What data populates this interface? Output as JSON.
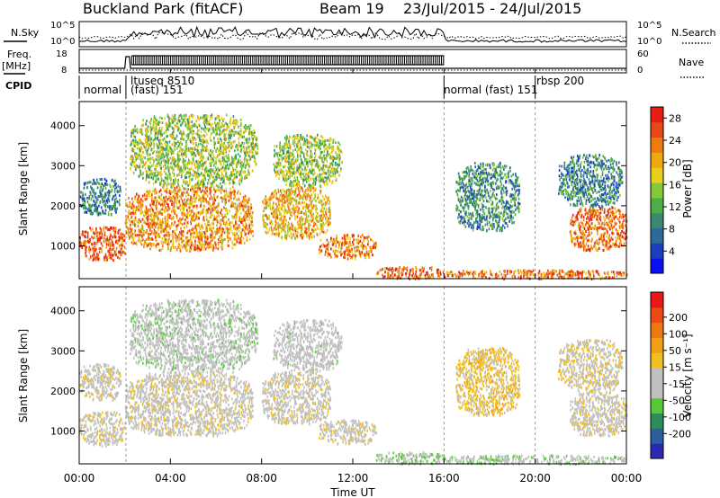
{
  "header": {
    "station": "Buckland Park (fitACF)",
    "beam": "Beam 19",
    "dates": "23/Jul/2015 - 24/Jul/2015"
  },
  "top_panels": {
    "nsky_label": "N.Sky",
    "nsearch_label": "N.Search",
    "tick_left_top": "10^5",
    "tick_left_bottom": "10^0",
    "tick_right_top": "10^5",
    "tick_right_bottom": "10^0",
    "freq_label": "Freq.",
    "freq_unit": "[MHz]",
    "freq_ticks": [
      "18",
      "8"
    ],
    "nave_label": "Nave",
    "nave_ticks": [
      "60",
      "0"
    ],
    "cpid_label": "CPID",
    "cpid_segments": [
      {
        "name": "normal",
        "start_h": 0.0,
        "end_h": 2.05
      },
      {
        "name": "ltuseq 8510 (fast) 151",
        "start_h": 2.05,
        "end_h": 16.0
      },
      {
        "name": "normal (fast) 151",
        "start_h": 16.0,
        "end_h": 20.0
      },
      {
        "name": "rbsp 200",
        "start_h": 20.0,
        "end_h": 24.0
      }
    ],
    "cpid_texts": [
      "normal",
      "ltuseq 8510",
      "(fast)  151",
      "normal (fast)  151",
      "rbsp  200"
    ]
  },
  "colors": {
    "power_scale": [
      "#0a10f0",
      "#1a40c0",
      "#2c6a9a",
      "#3a8a70",
      "#4cae48",
      "#86c838",
      "#e6d01c",
      "#f0a810",
      "#ee7a12",
      "#e84818",
      "#e61e16"
    ],
    "velocity_scale": [
      "#2a2ab0",
      "#2b5f9f",
      "#2d8e5c",
      "#56c83a",
      "#c0c0c0",
      "#c0c0c0",
      "#f0c020",
      "#f0a014",
      "#ee7812",
      "#ea4a14",
      "#e81818"
    ],
    "grey": "#c0c0c0"
  },
  "chart_data": [
    {
      "type": "heatmap",
      "panel": "power",
      "ylabel": "Slant Range [km]",
      "xlabel": "",
      "xlim": [
        0,
        24
      ],
      "ylim": [
        180,
        4600
      ],
      "yticks": [
        1000,
        2000,
        3000,
        4000
      ],
      "xticks": [
        "00:00",
        "04:00",
        "08:00",
        "12:00",
        "16:00",
        "20:00",
        "00:00"
      ],
      "colorbar": {
        "label": "Power [dB]",
        "ticks": [
          4,
          8,
          12,
          16,
          20,
          24,
          28
        ],
        "range": [
          0,
          30
        ]
      },
      "regions": [
        {
          "t": [
            0.0,
            2.0
          ],
          "r": [
            650,
            1500
          ],
          "v": 25
        },
        {
          "t": [
            0.0,
            1.8
          ],
          "r": [
            1800,
            2700
          ],
          "v": 8
        },
        {
          "t": [
            2.0,
            7.6
          ],
          "r": [
            900,
            2500
          ],
          "v": 22
        },
        {
          "t": [
            2.2,
            7.8
          ],
          "r": [
            2500,
            4300
          ],
          "v": 15
        },
        {
          "t": [
            8.0,
            11.0
          ],
          "r": [
            1200,
            2500
          ],
          "v": 20
        },
        {
          "t": [
            8.5,
            11.5
          ],
          "r": [
            2500,
            3800
          ],
          "v": 15
        },
        {
          "t": [
            10.5,
            13.0
          ],
          "r": [
            700,
            1300
          ],
          "v": 23
        },
        {
          "t": [
            13.0,
            16.0
          ],
          "r": [
            200,
            500
          ],
          "v": 25
        },
        {
          "t": [
            16.0,
            24.0
          ],
          "r": [
            200,
            420
          ],
          "v": 24
        },
        {
          "t": [
            16.5,
            19.3
          ],
          "r": [
            1400,
            3100
          ],
          "v": 10
        },
        {
          "t": [
            21.5,
            24.0
          ],
          "r": [
            900,
            2000
          ],
          "v": 24
        },
        {
          "t": [
            21.0,
            23.8
          ],
          "r": [
            2000,
            3300
          ],
          "v": 9
        }
      ]
    },
    {
      "type": "heatmap",
      "panel": "velocity",
      "ylabel": "Slant Range [km]",
      "xlabel": "Time UT",
      "xlim": [
        0,
        24
      ],
      "ylim": [
        180,
        4600
      ],
      "yticks": [
        1000,
        2000,
        3000,
        4000
      ],
      "xticks": [
        "00:00",
        "04:00",
        "08:00",
        "12:00",
        "16:00",
        "20:00",
        "00:00"
      ],
      "colorbar": {
        "label": "Velocity [m s⁻¹]",
        "ticks": [
          200,
          100,
          50,
          15,
          -15,
          -50,
          -100,
          -200
        ],
        "range": [
          -250,
          250
        ]
      },
      "regions": [
        {
          "t": [
            0.0,
            2.0
          ],
          "r": [
            650,
            1500
          ],
          "v": 0
        },
        {
          "t": [
            0.0,
            1.8
          ],
          "r": [
            1800,
            2700
          ],
          "v": 0
        },
        {
          "t": [
            2.0,
            7.6
          ],
          "r": [
            900,
            2500
          ],
          "v": 0
        },
        {
          "t": [
            2.2,
            7.8
          ],
          "r": [
            2500,
            4300
          ],
          "v": -40
        },
        {
          "t": [
            8.0,
            11.0
          ],
          "r": [
            1200,
            2500
          ],
          "v": 0
        },
        {
          "t": [
            8.5,
            11.5
          ],
          "r": [
            2500,
            3800
          ],
          "v": -30
        },
        {
          "t": [
            10.5,
            13.0
          ],
          "r": [
            700,
            1300
          ],
          "v": 0
        },
        {
          "t": [
            13.0,
            16.0
          ],
          "r": [
            200,
            500
          ],
          "v": -60
        },
        {
          "t": [
            16.0,
            24.0
          ],
          "r": [
            200,
            420
          ],
          "v": -50
        },
        {
          "t": [
            16.5,
            19.3
          ],
          "r": [
            1400,
            3100
          ],
          "v": 40
        },
        {
          "t": [
            21.5,
            24.0
          ],
          "r": [
            900,
            2000
          ],
          "v": 0
        },
        {
          "t": [
            21.0,
            23.8
          ],
          "r": [
            2000,
            3300
          ],
          "v": 10
        }
      ]
    }
  ]
}
